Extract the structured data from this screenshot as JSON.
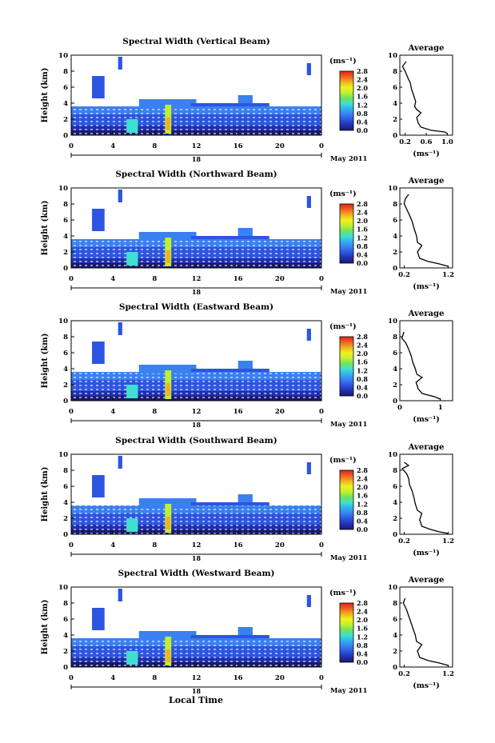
{
  "figure": {
    "x_axis_label": "Local Time",
    "x_ticks": [
      "0",
      "4",
      "8",
      "12",
      "16",
      "20",
      "0"
    ],
    "date_day": "18",
    "date_label": "May 2011",
    "y_axis_label": "Height (km)",
    "y_ticks": [
      "0",
      "2",
      "4",
      "6",
      "8",
      "10"
    ],
    "colorbar_unit": "(ms⁻¹)",
    "colorbar_ticks": [
      "0.0",
      "0.4",
      "0.8",
      "1.2",
      "1.6",
      "2.0",
      "2.4",
      "2.8"
    ],
    "avg_title": "Average",
    "avg_xlabel": "(ms⁻¹)",
    "colors": {
      "colormap": [
        "#1a1a6e",
        "#2030b0",
        "#2d55e0",
        "#3a80f0",
        "#30b0f0",
        "#40e0d0",
        "#70e060",
        "#c0f030",
        "#f0f020",
        "#f0b020",
        "#f06020",
        "#e02020"
      ],
      "profile_line": "#000000"
    }
  },
  "chart_data": [
    {
      "type": "heatmap",
      "title": "Spectral Width (Vertical Beam)",
      "x_label": "Local Time",
      "y_label": "Height (km)",
      "x_range": [
        0,
        24
      ],
      "y_range": [
        0,
        10
      ],
      "colorbar": {
        "unit": "(ms⁻¹)",
        "range": [
          0.0,
          2.8
        ]
      },
      "average_profile": {
        "title": "Average",
        "x_label": "(ms⁻¹)",
        "x_ticks": [
          "0.2",
          "0.6",
          "1.0"
        ],
        "x_tick_values": [
          0.2,
          0.6,
          1.0
        ],
        "x_range": [
          0.1,
          1.1
        ],
        "y_range": [
          0,
          10
        ],
        "points": [
          [
            1.0,
            0.2
          ],
          [
            0.95,
            0.4
          ],
          [
            0.7,
            0.6
          ],
          [
            0.5,
            1.0
          ],
          [
            0.45,
            1.5
          ],
          [
            0.42,
            2.2
          ],
          [
            0.5,
            2.8
          ],
          [
            0.42,
            3.2
          ],
          [
            0.38,
            3.6
          ],
          [
            0.4,
            4.2
          ],
          [
            0.36,
            5.0
          ],
          [
            0.32,
            5.8
          ],
          [
            0.3,
            6.5
          ],
          [
            0.25,
            7.2
          ],
          [
            0.2,
            8.0
          ],
          [
            0.15,
            8.6
          ],
          [
            0.22,
            9.2
          ]
        ]
      }
    },
    {
      "type": "heatmap",
      "title": "Spectral Width (Northward Beam)",
      "x_label": "Local Time",
      "y_label": "Height (km)",
      "x_range": [
        0,
        24
      ],
      "y_range": [
        0,
        10
      ],
      "colorbar": {
        "unit": "(ms⁻¹)",
        "range": [
          0.0,
          2.8
        ]
      },
      "average_profile": {
        "title": "Average",
        "x_label": "(ms⁻¹)",
        "x_ticks": [
          "0.2",
          "1.2"
        ],
        "x_tick_values": [
          0.2,
          1.2
        ],
        "x_range": [
          0.1,
          1.3
        ],
        "y_range": [
          0,
          10
        ],
        "points": [
          [
            1.2,
            0.2
          ],
          [
            1.0,
            0.5
          ],
          [
            0.75,
            0.8
          ],
          [
            0.55,
            1.2
          ],
          [
            0.5,
            2.0
          ],
          [
            0.6,
            2.8
          ],
          [
            0.5,
            3.2
          ],
          [
            0.48,
            4.0
          ],
          [
            0.42,
            5.0
          ],
          [
            0.38,
            5.8
          ],
          [
            0.32,
            6.6
          ],
          [
            0.25,
            7.4
          ],
          [
            0.2,
            8.0
          ],
          [
            0.22,
            8.6
          ],
          [
            0.3,
            9.2
          ]
        ]
      }
    },
    {
      "type": "heatmap",
      "title": "Spectral Width (Eastward Beam)",
      "x_label": "Local Time",
      "y_label": "Height (km)",
      "x_range": [
        0,
        24
      ],
      "y_range": [
        0,
        10
      ],
      "colorbar": {
        "unit": "(ms⁻¹)",
        "range": [
          0.0,
          2.8
        ]
      },
      "average_profile": {
        "title": "Average",
        "x_label": "(ms⁻¹)",
        "x_ticks": [
          "0",
          "1"
        ],
        "x_tick_values": [
          0,
          1
        ],
        "x_range": [
          0,
          1.3
        ],
        "y_range": [
          0,
          10
        ],
        "points": [
          [
            1.0,
            0.2
          ],
          [
            0.85,
            0.5
          ],
          [
            0.55,
            0.9
          ],
          [
            0.45,
            1.5
          ],
          [
            0.4,
            2.3
          ],
          [
            0.55,
            2.9
          ],
          [
            0.42,
            3.3
          ],
          [
            0.38,
            4.0
          ],
          [
            0.32,
            4.8
          ],
          [
            0.28,
            5.6
          ],
          [
            0.22,
            6.4
          ],
          [
            0.15,
            7.2
          ],
          [
            0.05,
            7.8
          ],
          [
            0.1,
            8.6
          ]
        ]
      }
    },
    {
      "type": "heatmap",
      "title": "Spectral Width (Southward Beam)",
      "x_label": "Local Time",
      "y_label": "Height (km)",
      "x_range": [
        0,
        24
      ],
      "y_range": [
        0,
        10
      ],
      "colorbar": {
        "unit": "(ms⁻¹)",
        "range": [
          0.0,
          2.8
        ]
      },
      "average_profile": {
        "title": "Average",
        "x_label": "(ms⁻¹)",
        "x_ticks": [
          "0.2",
          "1.2"
        ],
        "x_tick_values": [
          0.2,
          1.2
        ],
        "x_range": [
          0.1,
          1.3
        ],
        "y_range": [
          0,
          10
        ],
        "points": [
          [
            1.2,
            0.1
          ],
          [
            1.0,
            0.3
          ],
          [
            0.8,
            0.6
          ],
          [
            0.6,
            1.0
          ],
          [
            0.55,
            1.8
          ],
          [
            0.6,
            2.6
          ],
          [
            0.5,
            3.0
          ],
          [
            0.45,
            3.8
          ],
          [
            0.42,
            4.6
          ],
          [
            0.38,
            5.4
          ],
          [
            0.32,
            6.2
          ],
          [
            0.3,
            7.0
          ],
          [
            0.25,
            7.6
          ],
          [
            0.15,
            8.2
          ],
          [
            0.3,
            8.6
          ],
          [
            0.2,
            9.0
          ]
        ]
      }
    },
    {
      "type": "heatmap",
      "title": "Spectral Width (Westward Beam)",
      "x_label": "Local Time",
      "y_label": "Height (km)",
      "x_range": [
        0,
        24
      ],
      "y_range": [
        0,
        10
      ],
      "colorbar": {
        "unit": "(ms⁻¹)",
        "range": [
          0.0,
          2.8
        ]
      },
      "average_profile": {
        "title": "Average",
        "x_label": "(ms⁻¹)",
        "x_ticks": [
          "0.2",
          "1.2"
        ],
        "x_tick_values": [
          0.2,
          1.2
        ],
        "x_range": [
          0.1,
          1.3
        ],
        "y_range": [
          0,
          10
        ],
        "points": [
          [
            1.2,
            0.2
          ],
          [
            1.0,
            0.5
          ],
          [
            0.75,
            0.8
          ],
          [
            0.55,
            1.2
          ],
          [
            0.5,
            2.0
          ],
          [
            0.6,
            2.8
          ],
          [
            0.48,
            3.2
          ],
          [
            0.45,
            4.0
          ],
          [
            0.4,
            4.8
          ],
          [
            0.35,
            5.6
          ],
          [
            0.3,
            6.4
          ],
          [
            0.25,
            7.2
          ],
          [
            0.18,
            8.0
          ],
          [
            0.22,
            8.6
          ]
        ]
      }
    }
  ]
}
